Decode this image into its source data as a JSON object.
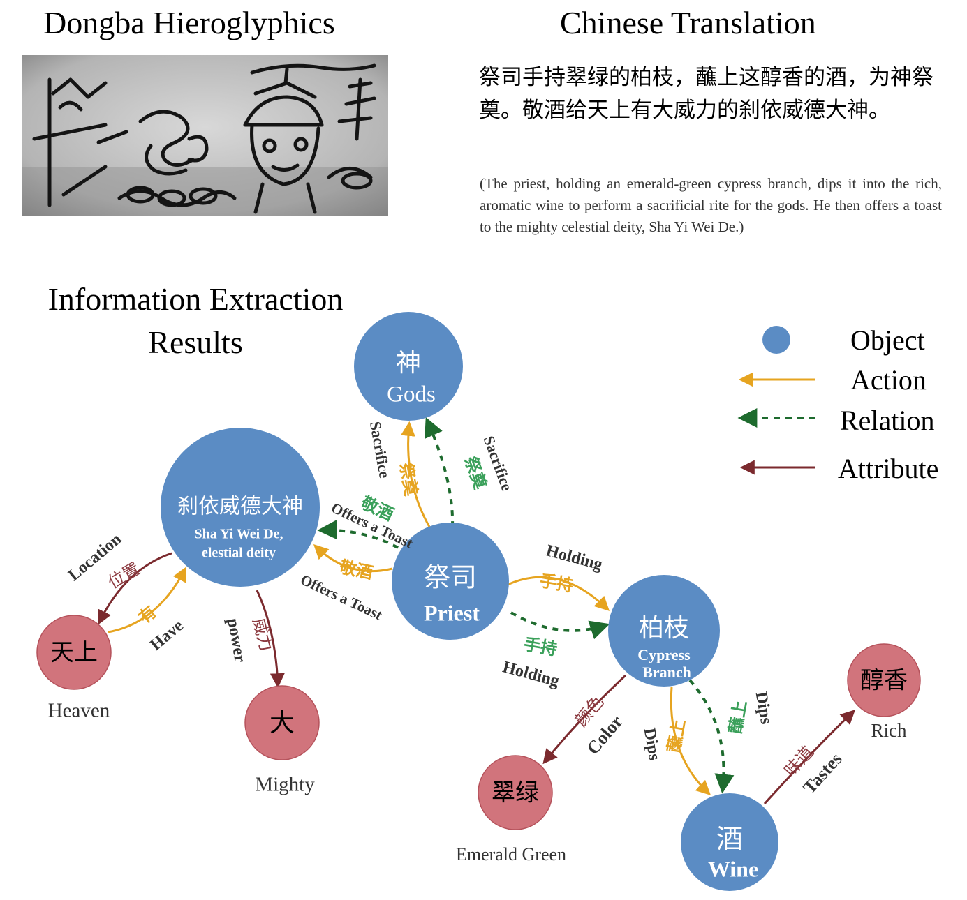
{
  "headings": {
    "dongba": "Dongba Hieroglyphics",
    "translation": "Chinese Translation",
    "ie": "Information Extraction Results"
  },
  "translation": {
    "zh": "祭司手持翠绿的柏枝，蘸上这醇香的酒，为神祭奠。敬酒给天上有大威力的刹依威德大神。",
    "en": "(The priest, holding an emerald-green cypress branch, dips it into the rich, aromatic wine to perform a sacrificial rite for the gods. He then offers a toast to the mighty celestial deity, Sha Yi Wei De.)"
  },
  "legend": {
    "object": "Object",
    "action": "Action",
    "relation": "Relation",
    "attribute": "Attribute"
  },
  "colors": {
    "object": "#5b8cc4",
    "attribute": "#d1747c",
    "action": "#e6a420",
    "relation": "#1e6b2e",
    "attribute_edge": "#7b2a2e",
    "action_text": "#e6a420",
    "relation_text": "#3aa05a",
    "attribute_text": "#8c3a40"
  },
  "nodes": {
    "gods": {
      "zh": "神",
      "en": "Gods"
    },
    "deity": {
      "zh": "刹依威德大神",
      "en1": "Sha Yi Wei De,",
      "en2": "elestial deity"
    },
    "priest": {
      "zh": "祭司",
      "en": "Priest"
    },
    "cypress": {
      "zh": "柏枝",
      "en1": "Cypress",
      "en2": "Branch"
    },
    "wine": {
      "zh": "酒",
      "en": "Wine"
    },
    "heaven": {
      "zh": "天上",
      "en": "Heaven"
    },
    "mighty": {
      "zh": "大",
      "en": "Mighty"
    },
    "emerald": {
      "zh": "翠绿",
      "en": "Emerald Green"
    },
    "rich": {
      "zh": "醇香",
      "en": "Rich"
    }
  },
  "edges": {
    "sacrifice_action": {
      "zh": "祭奠",
      "en": "Sacrifice"
    },
    "sacrifice_relation": {
      "zh": "祭奠",
      "en": "Sacrifice"
    },
    "toast_relation": {
      "zh": "敬酒",
      "en": "Offers a Toast"
    },
    "toast_action": {
      "zh": "敬酒",
      "en": "Offers a Toast"
    },
    "holding_action": {
      "zh": "手持",
      "en": "Holding"
    },
    "holding_relation": {
      "zh": "手持",
      "en": "Holding"
    },
    "dips_action": {
      "zh": "蘸上",
      "en": "Dips"
    },
    "dips_relation": {
      "zh": "蘸上",
      "en": "Dips"
    },
    "location": {
      "zh": "位置",
      "en": "Location"
    },
    "have": {
      "zh": "有",
      "en": "Have"
    },
    "power": {
      "zh": "威力",
      "en": "power"
    },
    "color": {
      "zh": "颜色",
      "en": "Color"
    },
    "tastes": {
      "zh": "味道",
      "en": "Tastes"
    }
  }
}
